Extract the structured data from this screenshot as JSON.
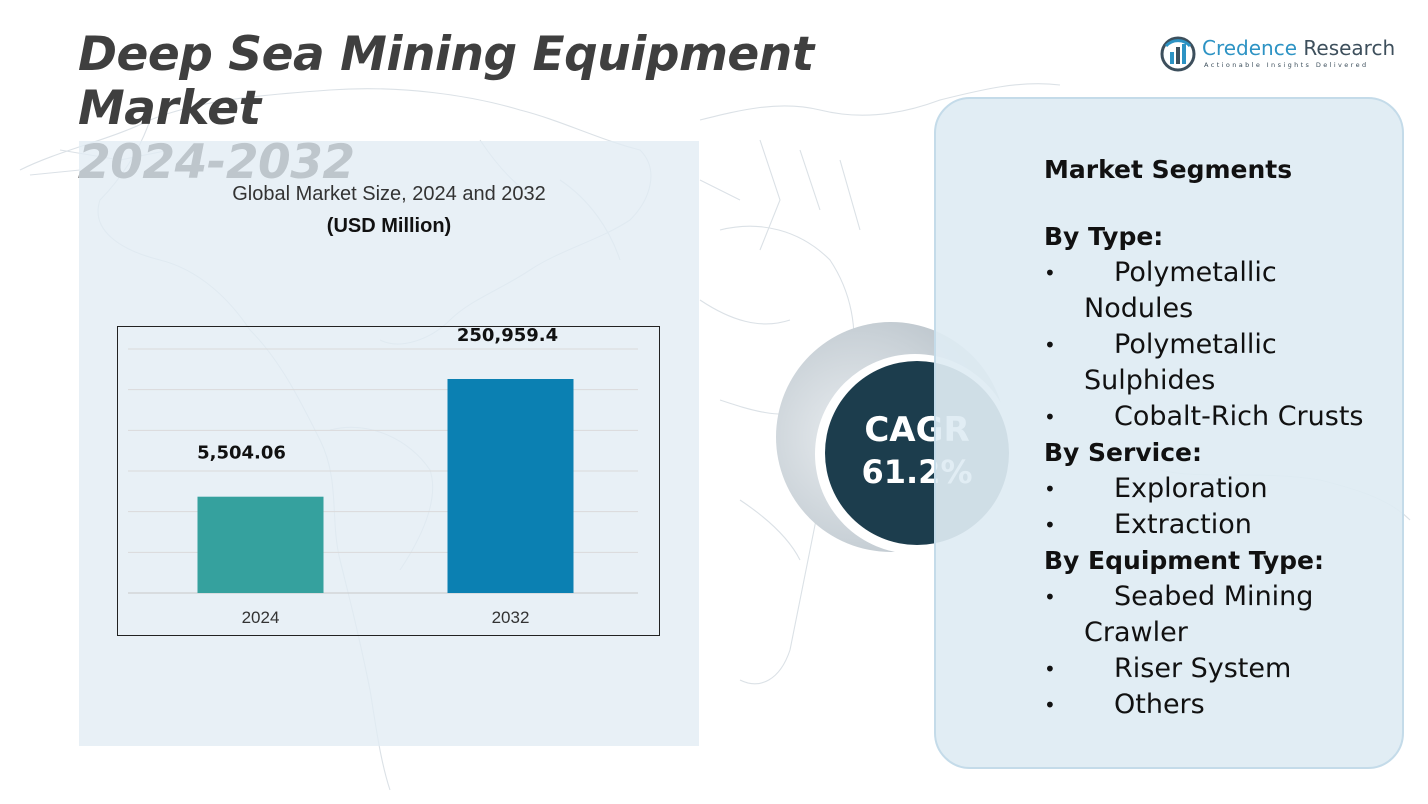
{
  "header": {
    "title_line1": "Deep Sea Mining Equipment Market",
    "title_line2": "2024-2032"
  },
  "logo": {
    "icon": "bar-chart-circle-icon",
    "name_part1": "Credence",
    "name_part2": " Research",
    "tagline": "Actionable Insights Delivered"
  },
  "chart": {
    "title": "Global Market Size, 2024 and 2032",
    "unit": "(USD Million)"
  },
  "chart_data": {
    "type": "bar",
    "title": "Global Market Size, 2024 and 2032",
    "subtitle": "(USD Million)",
    "categories": [
      "2024",
      "2032"
    ],
    "values": [
      5504.06,
      250959.4
    ],
    "value_labels": [
      "5,504.06",
      "250,959.4"
    ],
    "xlabel": "",
    "ylabel": "",
    "grid": true,
    "legend": "none",
    "colors": [
      "#35a19e",
      "#0b80b2"
    ]
  },
  "cagr": {
    "label": "CAGR",
    "value": "61.2%"
  },
  "segments": {
    "heading": "Market Segments",
    "groups": [
      {
        "title": "By Type:",
        "items": [
          "Polymetallic Nodules",
          "Polymetallic Sulphides",
          "Cobalt-Rich Crusts"
        ]
      },
      {
        "title": "By Service:",
        "items": [
          "Exploration",
          "Extraction"
        ]
      },
      {
        "title": "By Equipment Type:",
        "items": [
          "Seabed Mining Crawler",
          "Riser System",
          "Others"
        ]
      }
    ],
    "bullet": "•"
  },
  "colors": {
    "title": "#3f3f3f",
    "cagr_circle": "#1c3d4d",
    "panel_bg": "#e1ecf4",
    "brand_blue": "#2d93c4"
  }
}
